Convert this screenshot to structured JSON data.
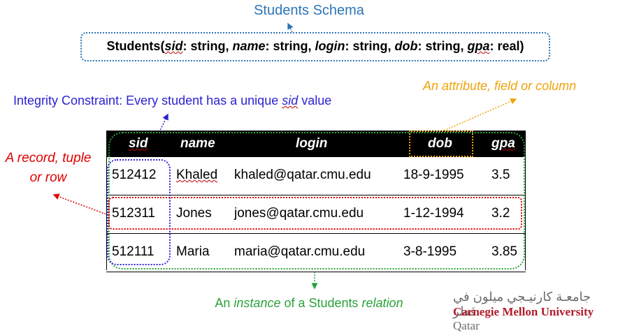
{
  "title": "Students Schema",
  "schema": {
    "relation": "Students",
    "open": "(",
    "sid": "sid",
    "sid_type": ": string, ",
    "name": "name",
    "name_type": ": string, ",
    "login": "login",
    "login_type": ": string, ",
    "dob": "dob",
    "dob_type": ": string, ",
    "gpa": "gpa",
    "gpa_type": ": real)"
  },
  "annotations": {
    "integrity_prefix": "Integrity Constraint: Every student has a unique ",
    "integrity_sid": "sid",
    "integrity_suffix": " value",
    "attribute": "An attribute, field or column",
    "record_line1": "A record, tuple",
    "record_line2": "or row",
    "instance_prefix": "An ",
    "instance_word": "instance",
    "instance_mid": " of a Students ",
    "instance_relation": "relation"
  },
  "table": {
    "headers": [
      "sid",
      "name",
      "login",
      "dob",
      "gpa"
    ],
    "rows": [
      [
        "512412",
        "Khaled",
        "khaled@qatar.cmu.edu",
        "18-9-1995",
        "3.5"
      ],
      [
        "512311",
        "Jones",
        "jones@qatar.cmu.edu",
        "1-12-1994",
        "3.2"
      ],
      [
        "512111",
        "Maria",
        "maria@qatar.cmu.edu",
        "3-8-1995",
        "3.85"
      ]
    ]
  },
  "logo": {
    "arabic": "جامعـة كارنيـجي ميلون في قطر",
    "en_main": "Carnegie Mellon University",
    "en_qatar": " Qatar"
  },
  "colors": {
    "blue": "#2e75b6",
    "indigo": "#2b22d4",
    "orange": "#f0a30a",
    "red": "#e00000",
    "green": "#2aa23a"
  }
}
